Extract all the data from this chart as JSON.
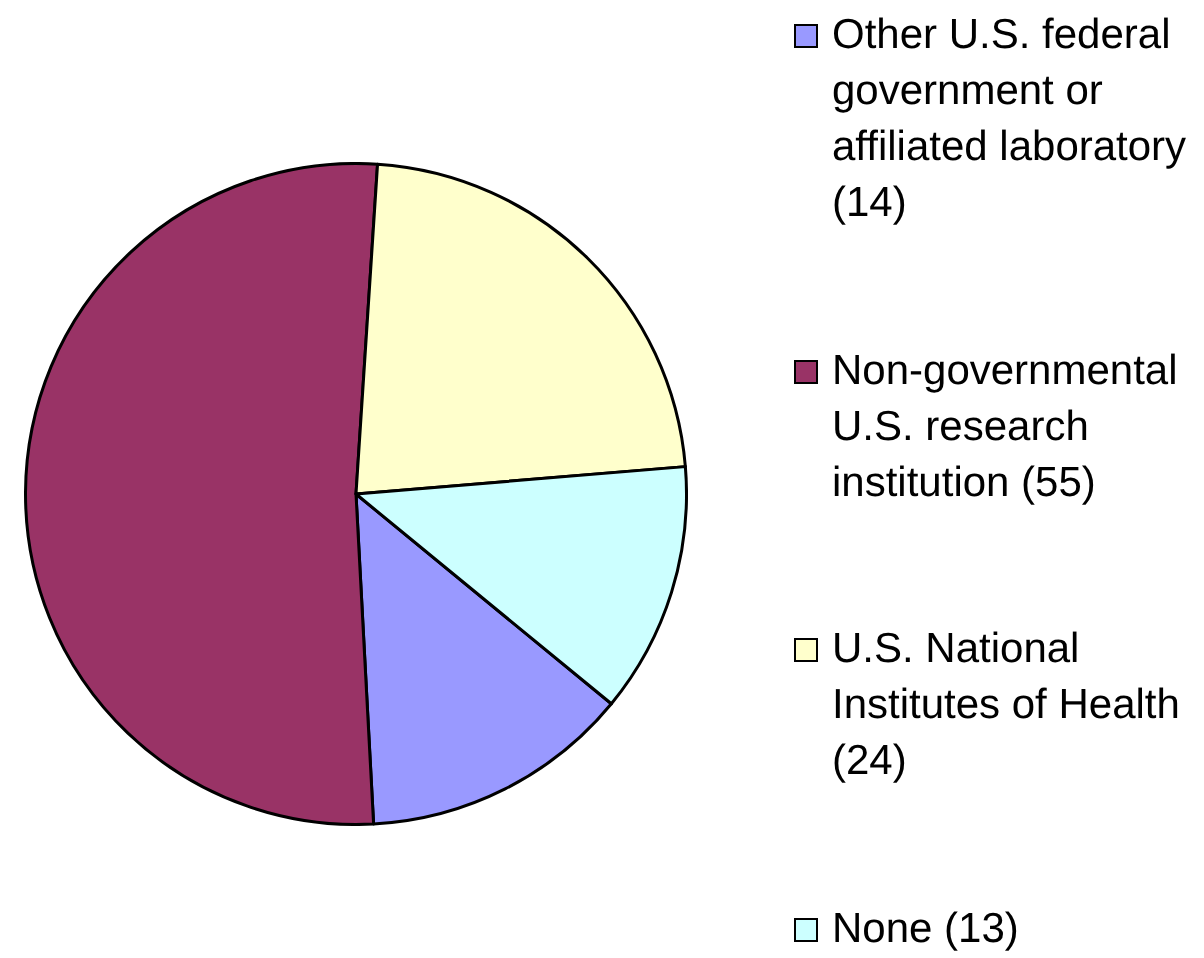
{
  "chart_data": {
    "type": "pie",
    "categories": [
      "Other U.S. federal government or affiliated laboratory (14)",
      "Non-governmental U.S. research institution (55)",
      "U.S. National Institutes of Health (24)",
      "None (13)"
    ],
    "values": [
      14,
      55,
      24,
      13
    ],
    "colors": [
      "#9999ff",
      "#993366",
      "#ffffcc",
      "#ccffff"
    ],
    "legend": "right"
  }
}
